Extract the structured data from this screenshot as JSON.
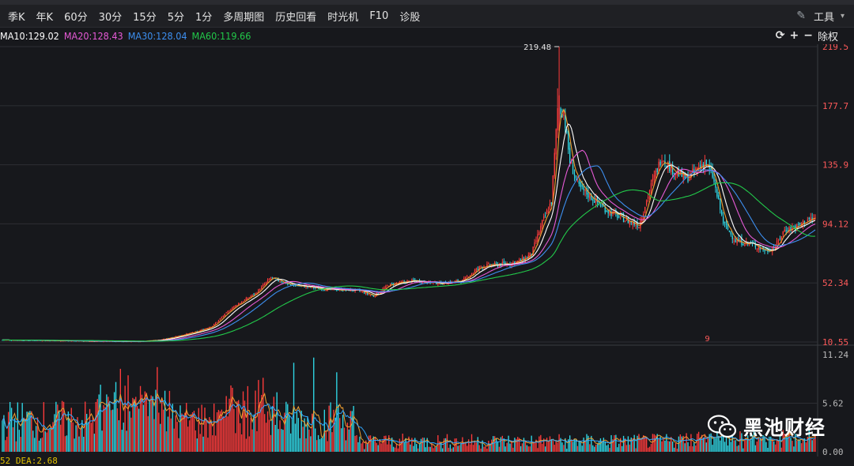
{
  "toolbar": {
    "tabs": [
      "季K",
      "年K",
      "60分",
      "30分",
      "15分",
      "5分",
      "1分",
      "多周期图",
      "历史回看",
      "时光机",
      "F10",
      "诊股"
    ],
    "tools_label": "工具"
  },
  "ma_legend": [
    {
      "label": "MA10:129.02",
      "color": "#ffffff"
    },
    {
      "label": "MA20:128.43",
      "color": "#e65ad6"
    },
    {
      "label": "MA30:128.04",
      "color": "#3d8ff0"
    },
    {
      "label": "MA60:119.66",
      "color": "#22c94a"
    }
  ],
  "controls": {
    "refresh_icon": "refresh-icon",
    "plus": "+",
    "minus": "−",
    "adjust_label": "除权"
  },
  "chart_data": {
    "type": "candlestick",
    "price_axis_ticks": [
      "219.5",
      "177.7",
      "135.9",
      "94.12",
      "52.34",
      "10.55"
    ],
    "price_range": [
      10.55,
      219.5
    ],
    "high_annotation": "219.48",
    "marker_label": "9",
    "volume_axis_ticks": [
      "11.24",
      "5.62",
      "0.00"
    ],
    "volume_range": [
      0,
      11.24
    ],
    "colors": {
      "up": "#ff3b3b",
      "down": "#2fd8e6",
      "ma10": "#ffffff",
      "ma20": "#e65ad6",
      "ma30": "#3d8ff0",
      "ma60": "#22c94a",
      "vol_ma1": "#f0a030",
      "vol_ma2": "#30a8ff"
    },
    "anchors": [
      {
        "i": 0,
        "p": 12
      },
      {
        "i": 40,
        "p": 11.5
      },
      {
        "i": 70,
        "p": 11
      },
      {
        "i": 88,
        "p": 11
      },
      {
        "i": 103,
        "p": 12
      },
      {
        "i": 115,
        "p": 15
      },
      {
        "i": 127,
        "p": 18
      },
      {
        "i": 137,
        "p": 22
      },
      {
        "i": 150,
        "p": 35
      },
      {
        "i": 165,
        "p": 45
      },
      {
        "i": 175,
        "p": 56
      },
      {
        "i": 188,
        "p": 51
      },
      {
        "i": 210,
        "p": 48
      },
      {
        "i": 232,
        "p": 47
      },
      {
        "i": 242,
        "p": 43
      },
      {
        "i": 252,
        "p": 51
      },
      {
        "i": 268,
        "p": 54
      },
      {
        "i": 285,
        "p": 52
      },
      {
        "i": 300,
        "p": 54
      },
      {
        "i": 312,
        "p": 64
      },
      {
        "i": 330,
        "p": 66
      },
      {
        "i": 338,
        "p": 68
      },
      {
        "i": 345,
        "p": 73
      },
      {
        "i": 352,
        "p": 95
      },
      {
        "i": 358,
        "p": 110
      },
      {
        "i": 362,
        "p": 175
      },
      {
        "i": 366,
        "p": 173
      },
      {
        "i": 370,
        "p": 138
      },
      {
        "i": 376,
        "p": 120
      },
      {
        "i": 385,
        "p": 112
      },
      {
        "i": 395,
        "p": 103
      },
      {
        "i": 408,
        "p": 96
      },
      {
        "i": 415,
        "p": 93
      },
      {
        "i": 422,
        "p": 118
      },
      {
        "i": 430,
        "p": 142
      },
      {
        "i": 436,
        "p": 133
      },
      {
        "i": 446,
        "p": 126
      },
      {
        "i": 458,
        "p": 138
      },
      {
        "i": 463,
        "p": 128
      },
      {
        "i": 470,
        "p": 95
      },
      {
        "i": 478,
        "p": 82
      },
      {
        "i": 488,
        "p": 80
      },
      {
        "i": 498,
        "p": 75
      },
      {
        "i": 504,
        "p": 78
      },
      {
        "i": 510,
        "p": 90
      },
      {
        "i": 518,
        "p": 92
      },
      {
        "i": 525,
        "p": 97
      },
      {
        "i": 530,
        "p": 98
      }
    ]
  },
  "footer": {
    "text": "52  DEA:2.68"
  },
  "watermark": {
    "text": "黑池财经",
    "icon": "wechat-icon"
  }
}
